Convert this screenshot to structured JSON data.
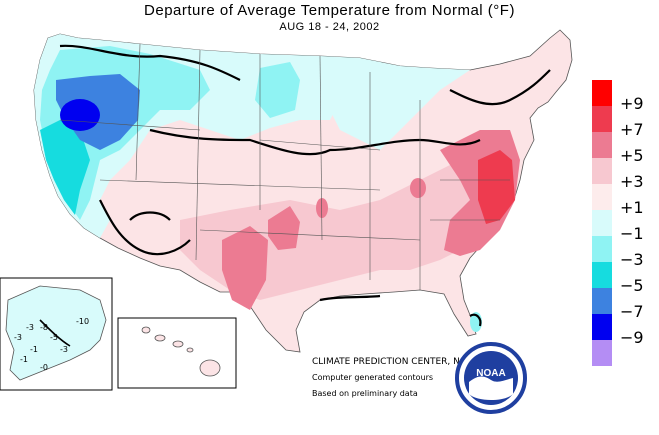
{
  "title": "Departure of Average Temperature from Normal (°F)",
  "subtitle": "AUG 18 - 24, 2002",
  "legend": {
    "items": [
      {
        "label": "+9",
        "color": "#ff0000"
      },
      {
        "label": "+7",
        "color": "#ee3b4f"
      },
      {
        "label": "+5",
        "color": "#ec7b92"
      },
      {
        "label": "+3",
        "color": "#f7c8d0"
      },
      {
        "label": "+1",
        "color": "#fdecec"
      },
      {
        "label": "−1",
        "color": "#d8fbfb"
      },
      {
        "label": "−3",
        "color": "#8ff3f3"
      },
      {
        "label": "−5",
        "color": "#16dcdf"
      },
      {
        "label": "−7",
        "color": "#3d82e0"
      },
      {
        "label": "−9",
        "color": "#0000f0"
      },
      {
        "label": "",
        "color": "#b48df4"
      }
    ]
  },
  "credits": {
    "center": "CLIMATE PREDICTION CENTER, NOAA",
    "line1": "Computer generated contours",
    "line2": "Based on preliminary data"
  },
  "alaska_labels": [
    "-3",
    "-8",
    "-3",
    "-5",
    "-1",
    "-3",
    "-10",
    "-1",
    "-0"
  ],
  "logo": {
    "text": "NOAA"
  }
}
